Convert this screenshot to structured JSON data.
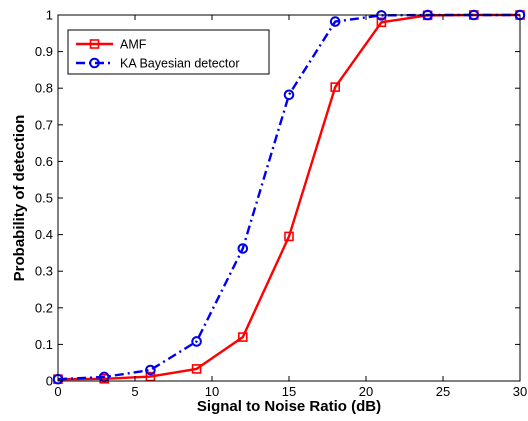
{
  "chart_data": {
    "type": "line",
    "xlabel": "Signal to Noise Ratio (dB)",
    "ylabel": "Probability of detection",
    "xlim": [
      0,
      30
    ],
    "ylim": [
      0,
      1
    ],
    "x_ticks": [
      0,
      5,
      10,
      15,
      20,
      25,
      30
    ],
    "x_tick_labels": [
      "0",
      "5",
      "10",
      "15",
      "20",
      "25",
      "30"
    ],
    "y_ticks": [
      0,
      0.1,
      0.2,
      0.3,
      0.4,
      0.5,
      0.6,
      0.7,
      0.8,
      0.9,
      1
    ],
    "y_tick_labels": [
      "0",
      "0.1",
      "0.2",
      "0.3",
      "0.4",
      "0.5",
      "0.6",
      "0.7",
      "0.8",
      "0.9",
      "1"
    ],
    "grid": false,
    "legend_position": "top-left",
    "series": [
      {
        "name": "AMF",
        "color": "#ff0000",
        "line_style": "solid",
        "marker": "square",
        "x": [
          0,
          3,
          6,
          9,
          12,
          15,
          18,
          21,
          24,
          27,
          30
        ],
        "y": [
          0.005,
          0.006,
          0.012,
          0.033,
          0.12,
          0.395,
          0.803,
          0.98,
          0.999,
          1.0,
          1.0
        ]
      },
      {
        "name": "KA Bayesian detector",
        "color": "#0000ee",
        "line_style": "dashdot",
        "marker": "circle",
        "x": [
          0,
          3,
          6,
          9,
          12,
          15,
          18,
          21,
          24,
          27,
          30
        ],
        "y": [
          0.005,
          0.011,
          0.03,
          0.108,
          0.362,
          0.782,
          0.982,
          0.999,
          1.0,
          1.0,
          1.0
        ]
      }
    ]
  }
}
